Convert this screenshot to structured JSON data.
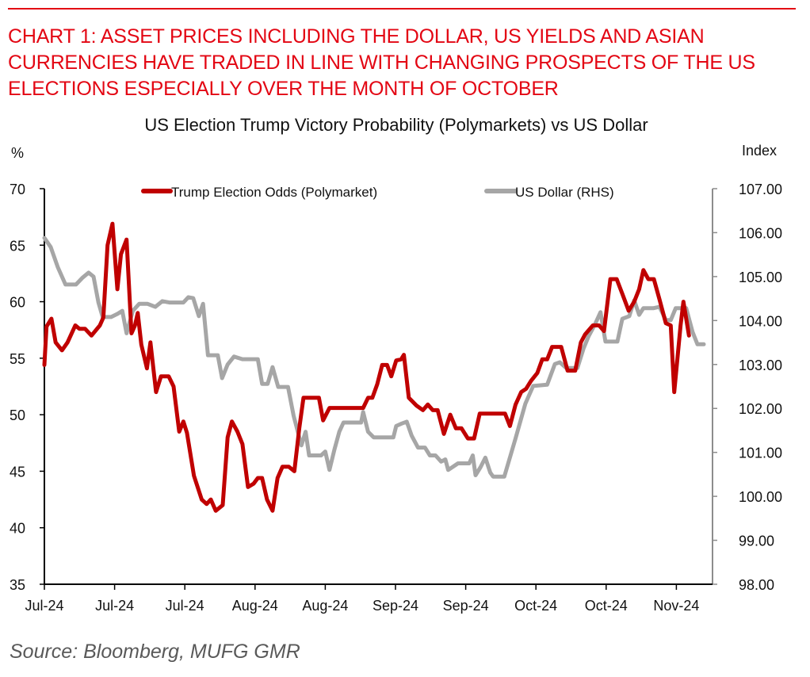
{
  "header": {
    "headline": "CHART 1: ASSET PRICES INCLUDING THE DOLLAR, US YIELDS AND ASIAN CURRENCIES HAVE TRADED IN LINE WITH CHANGING PROSPECTS OF THE US ELECTIONS ESPECIALLY OVER THE MONTH OF OCTOBER",
    "accent_color": "#e30613"
  },
  "footer": {
    "source": "Source: Bloomberg, MUFG GMR"
  },
  "chart_data": {
    "type": "line",
    "title": "US Election Trump Victory Probability (Polymarkets) vs US Dollar",
    "ylabel_left": "%",
    "ylabel_right": "Index",
    "ylim_left": [
      35,
      70
    ],
    "ylim_right": [
      98,
      107
    ],
    "yticks_left": [
      "70",
      "65",
      "60",
      "55",
      "50",
      "45",
      "40",
      "35"
    ],
    "yticks_right": [
      "107.00",
      "106.00",
      "105.00",
      "104.00",
      "103.00",
      "102.00",
      "101.00",
      "100.00",
      "99.00",
      "98.00"
    ],
    "xtick_labels": [
      "Jul-24",
      "Jul-24",
      "Jul-24",
      "Aug-24",
      "Aug-24",
      "Sep-24",
      "Sep-24",
      "Oct-24",
      "Oct-24",
      "Nov-24"
    ],
    "x_note": "x values are positions along the time axis in tick units (0 = first Jul-24 tick, 1 tick step per label)",
    "xlim": [
      0,
      9.51
    ],
    "grid": false,
    "legend_position": "top-center",
    "series": [
      {
        "name": "Trump Election Odds (Polymarket)",
        "axis": "left",
        "color": "#c00000",
        "points": [
          [
            0,
            54.4
          ],
          [
            0.03,
            57.8
          ],
          [
            0.1,
            58.5
          ],
          [
            0.16,
            56.4
          ],
          [
            0.25,
            55.7
          ],
          [
            0.33,
            56.4
          ],
          [
            0.44,
            57.9
          ],
          [
            0.5,
            57.6
          ],
          [
            0.58,
            57.6
          ],
          [
            0.67,
            57
          ],
          [
            0.79,
            57.9
          ],
          [
            0.84,
            58.6
          ],
          [
            0.9,
            65
          ],
          [
            0.97,
            66.9
          ],
          [
            1.04,
            61.1
          ],
          [
            1.09,
            64.2
          ],
          [
            1.17,
            65.5
          ],
          [
            1.24,
            57.2
          ],
          [
            1.29,
            57.9
          ],
          [
            1.33,
            59
          ],
          [
            1.38,
            56.2
          ],
          [
            1.46,
            54.1
          ],
          [
            1.51,
            56.4
          ],
          [
            1.59,
            52
          ],
          [
            1.66,
            53.4
          ],
          [
            1.77,
            53.4
          ],
          [
            1.84,
            52.5
          ],
          [
            1.92,
            48.5
          ],
          [
            1.98,
            49.4
          ],
          [
            2.03,
            48.4
          ],
          [
            2.13,
            44.6
          ],
          [
            2.24,
            42.5
          ],
          [
            2.31,
            42.1
          ],
          [
            2.37,
            42.5
          ],
          [
            2.44,
            41.5
          ],
          [
            2.54,
            42
          ],
          [
            2.61,
            48
          ],
          [
            2.67,
            49.4
          ],
          [
            2.75,
            48.5
          ],
          [
            2.82,
            47.4
          ],
          [
            2.9,
            43.6
          ],
          [
            2.98,
            43.9
          ],
          [
            3.04,
            44.4
          ],
          [
            3.1,
            44.4
          ],
          [
            3.17,
            42.5
          ],
          [
            3.25,
            41.5
          ],
          [
            3.32,
            44.4
          ],
          [
            3.39,
            45.4
          ],
          [
            3.48,
            45.4
          ],
          [
            3.56,
            45
          ],
          [
            3.63,
            48.8
          ],
          [
            3.69,
            51.5
          ],
          [
            3.83,
            51.5
          ],
          [
            3.91,
            51.5
          ],
          [
            3.97,
            49.5
          ],
          [
            4.06,
            50.6
          ],
          [
            4.54,
            50.6
          ],
          [
            4.61,
            51.5
          ],
          [
            4.67,
            51.5
          ],
          [
            4.74,
            52.7
          ],
          [
            4.81,
            54.4
          ],
          [
            4.88,
            54.4
          ],
          [
            4.94,
            53.4
          ],
          [
            5.01,
            54.8
          ],
          [
            5.08,
            54.9
          ],
          [
            5.12,
            55.3
          ],
          [
            5.19,
            51.5
          ],
          [
            5.3,
            50.8
          ],
          [
            5.39,
            50.4
          ],
          [
            5.46,
            50.9
          ],
          [
            5.53,
            50.4
          ],
          [
            5.6,
            50.4
          ],
          [
            5.69,
            48.3
          ],
          [
            5.78,
            50
          ],
          [
            5.86,
            48.8
          ],
          [
            5.94,
            48.8
          ],
          [
            6.03,
            47.9
          ],
          [
            6.12,
            47.9
          ],
          [
            6.2,
            50.1
          ],
          [
            6.56,
            50.1
          ],
          [
            6.63,
            49
          ],
          [
            6.71,
            50.9
          ],
          [
            6.79,
            52
          ],
          [
            6.86,
            52.3
          ],
          [
            6.93,
            53
          ],
          [
            7.02,
            53.7
          ],
          [
            7.09,
            54.9
          ],
          [
            7.16,
            54.9
          ],
          [
            7.23,
            56
          ],
          [
            7.36,
            56
          ],
          [
            7.45,
            53.9
          ],
          [
            7.56,
            53.9
          ],
          [
            7.64,
            56.4
          ],
          [
            7.7,
            57.1
          ],
          [
            7.81,
            57.9
          ],
          [
            7.9,
            57.9
          ],
          [
            7.97,
            57.4
          ],
          [
            8.06,
            62
          ],
          [
            8.15,
            62
          ],
          [
            8.23,
            60.7
          ],
          [
            8.32,
            59.2
          ],
          [
            8.4,
            60
          ],
          [
            8.47,
            61.1
          ],
          [
            8.53,
            62.8
          ],
          [
            8.6,
            62
          ],
          [
            8.68,
            62
          ],
          [
            8.76,
            60.2
          ],
          [
            8.85,
            58.1
          ],
          [
            8.92,
            57.9
          ],
          [
            8.97,
            52
          ],
          [
            9.06,
            57.9
          ],
          [
            9.1,
            60
          ],
          [
            9.18,
            57
          ]
        ]
      },
      {
        "name": "US Dollar (RHS)",
        "axis": "right",
        "color": "#a6a6a6",
        "points": [
          [
            0,
            105.88
          ],
          [
            0.09,
            105.67
          ],
          [
            0.19,
            105.22
          ],
          [
            0.3,
            104.82
          ],
          [
            0.45,
            104.82
          ],
          [
            0.54,
            104.97
          ],
          [
            0.63,
            105.09
          ],
          [
            0.7,
            105
          ],
          [
            0.77,
            104.41
          ],
          [
            0.83,
            104.08
          ],
          [
            0.95,
            104.08
          ],
          [
            1.04,
            104.15
          ],
          [
            1.11,
            104.22
          ],
          [
            1.17,
            103.71
          ],
          [
            1.26,
            104.22
          ],
          [
            1.35,
            104.38
          ],
          [
            1.47,
            104.38
          ],
          [
            1.58,
            104.31
          ],
          [
            1.68,
            104.44
          ],
          [
            1.78,
            104.41
          ],
          [
            1.98,
            104.41
          ],
          [
            2.05,
            104.53
          ],
          [
            2.12,
            104.51
          ],
          [
            2.2,
            104.1
          ],
          [
            2.26,
            104.38
          ],
          [
            2.33,
            103.21
          ],
          [
            2.47,
            103.21
          ],
          [
            2.53,
            102.69
          ],
          [
            2.61,
            103
          ],
          [
            2.7,
            103.18
          ],
          [
            2.78,
            103.14
          ],
          [
            2.82,
            103.12
          ],
          [
            3.04,
            103.12
          ],
          [
            3.1,
            102.56
          ],
          [
            3.18,
            102.56
          ],
          [
            3.25,
            102.94
          ],
          [
            3.33,
            102.49
          ],
          [
            3.47,
            102.49
          ],
          [
            3.55,
            101.83
          ],
          [
            3.66,
            101.16
          ],
          [
            3.72,
            101.47
          ],
          [
            3.77,
            100.93
          ],
          [
            3.94,
            100.93
          ],
          [
            4,
            101.02
          ],
          [
            4.06,
            100.6
          ],
          [
            4.13,
            101.06
          ],
          [
            4.2,
            101.47
          ],
          [
            4.26,
            101.68
          ],
          [
            4.43,
            101.68
          ],
          [
            4.51,
            101.68
          ],
          [
            4.54,
            101.92
          ],
          [
            4.61,
            101.47
          ],
          [
            4.69,
            101.34
          ],
          [
            4.81,
            101.34
          ],
          [
            4.97,
            101.34
          ],
          [
            5.01,
            101.6
          ],
          [
            5.08,
            101.65
          ],
          [
            5.16,
            101.7
          ],
          [
            5.23,
            101.38
          ],
          [
            5.32,
            101.11
          ],
          [
            5.42,
            101.11
          ],
          [
            5.49,
            100.93
          ],
          [
            5.57,
            100.93
          ],
          [
            5.65,
            100.79
          ],
          [
            5.71,
            100.84
          ],
          [
            5.75,
            100.6
          ],
          [
            5.89,
            100.75
          ],
          [
            6.05,
            100.75
          ],
          [
            6.1,
            100.93
          ],
          [
            6.14,
            100.48
          ],
          [
            6.21,
            100.66
          ],
          [
            6.28,
            100.88
          ],
          [
            6.35,
            100.54
          ],
          [
            6.39,
            100.45
          ],
          [
            6.55,
            100.45
          ],
          [
            6.71,
            101.32
          ],
          [
            6.85,
            102.11
          ],
          [
            6.96,
            102.51
          ],
          [
            7.16,
            102.54
          ],
          [
            7.27,
            103.01
          ],
          [
            7.34,
            103.05
          ],
          [
            7.43,
            102.92
          ],
          [
            7.59,
            102.92
          ],
          [
            7.68,
            103.37
          ],
          [
            7.75,
            103.64
          ],
          [
            7.84,
            103.91
          ],
          [
            7.92,
            104.19
          ],
          [
            7.99,
            103.52
          ],
          [
            8.16,
            103.52
          ],
          [
            8.23,
            104.04
          ],
          [
            8.33,
            104.1
          ],
          [
            8.4,
            104.46
          ],
          [
            8.47,
            104.13
          ],
          [
            8.53,
            104.28
          ],
          [
            8.67,
            104.28
          ],
          [
            8.76,
            104.31
          ],
          [
            8.85,
            104.01
          ],
          [
            8.92,
            104.01
          ],
          [
            8.99,
            104.28
          ],
          [
            9.14,
            104.28
          ],
          [
            9.23,
            103.74
          ],
          [
            9.3,
            103.46
          ],
          [
            9.39,
            103.46
          ]
        ]
      }
    ]
  }
}
